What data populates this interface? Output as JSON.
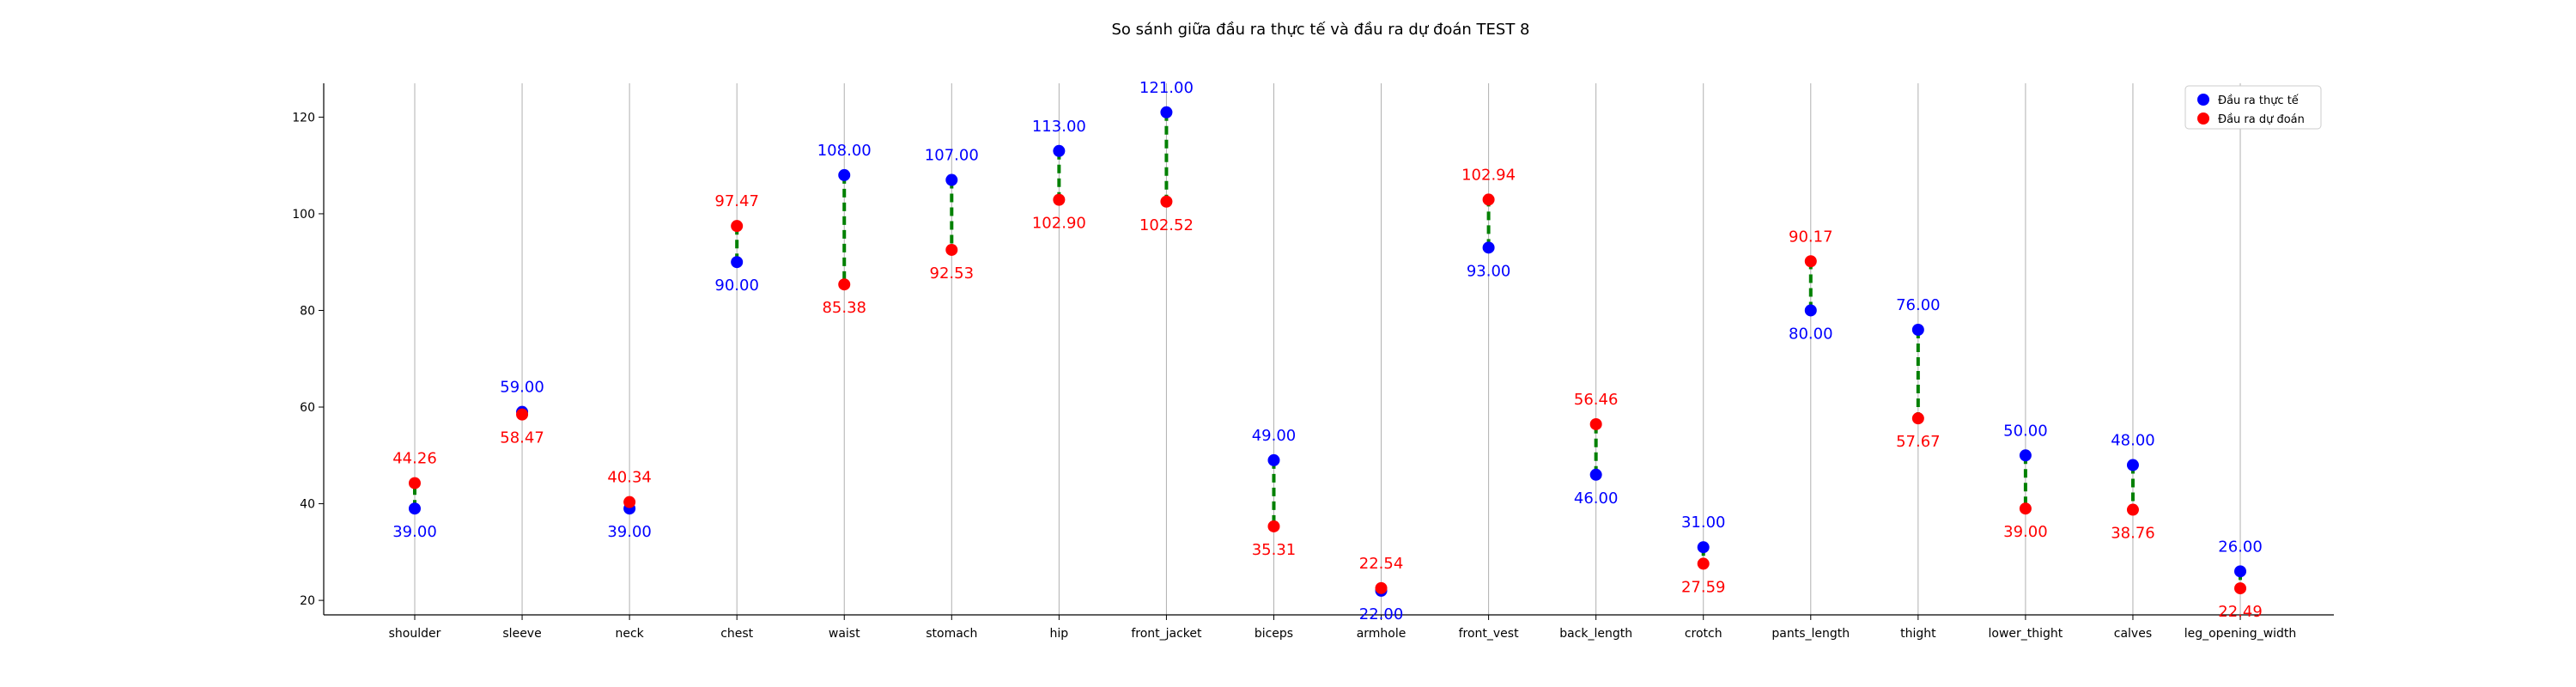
{
  "chart_data": {
    "type": "scatter",
    "title": "So sánh giữa đầu ra thực tế và đầu ra dự đoán TEST 8",
    "xlabel": "",
    "ylabel": "",
    "categories": [
      "shoulder",
      "sleeve",
      "neck",
      "chest",
      "waist",
      "stomach",
      "hip",
      "front_jacket",
      "biceps",
      "armhole",
      "front_vest",
      "back_length",
      "crotch",
      "pants_length",
      "thight",
      "lower_thight",
      "calves",
      "leg_opening_width"
    ],
    "series": [
      {
        "name": "Đầu ra thực tế",
        "color": "#0000ff",
        "values": [
          39.0,
          59.0,
          39.0,
          90.0,
          108.0,
          107.0,
          113.0,
          121.0,
          49.0,
          22.0,
          93.0,
          46.0,
          31.0,
          80.0,
          76.0,
          50.0,
          48.0,
          26.0
        ]
      },
      {
        "name": "Đầu ra dự đoán",
        "color": "#ff0000",
        "values": [
          44.26,
          58.47,
          40.34,
          97.47,
          85.38,
          92.53,
          102.9,
          102.52,
          35.31,
          22.54,
          102.94,
          56.46,
          27.59,
          90.17,
          57.67,
          39.0,
          38.76,
          22.49
        ]
      }
    ],
    "value_labels": {
      "actual": [
        "39.00",
        "59.00",
        "39.00",
        "90.00",
        "108.00",
        "107.00",
        "113.00",
        "121.00",
        "49.00",
        "22.00",
        "93.00",
        "46.00",
        "31.00",
        "80.00",
        "76.00",
        "50.00",
        "48.00",
        "26.00"
      ],
      "predicted": [
        "44.26",
        "58.47",
        "40.34",
        "97.47",
        "85.38",
        "92.53",
        "102.90",
        "102.52",
        "35.31",
        "22.54",
        "102.94",
        "56.46",
        "27.59",
        "90.17",
        "57.67",
        "39.00",
        "38.76",
        "22.49"
      ]
    },
    "connector_color": "#008000",
    "yticks": [
      "20",
      "40",
      "60",
      "80",
      "100",
      "120"
    ],
    "ylim": [
      17,
      127
    ],
    "grid": "vertical",
    "legend_position": "top-right"
  }
}
